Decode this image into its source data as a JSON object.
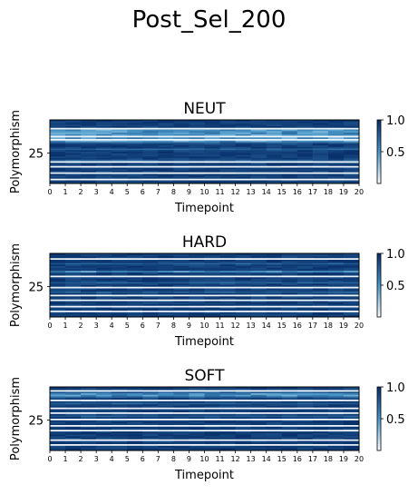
{
  "figure": {
    "title": "Post_Sel_200"
  },
  "colormap": {
    "low": "#f7fbff",
    "mid": "#4a98c9",
    "high": "#08306b"
  },
  "chart_data": [
    {
      "type": "heatmap",
      "title": "NEUT",
      "xlabel": "Timepoint",
      "ylabel": "Polymorphism",
      "x_ticks": [
        "0",
        "1",
        "2",
        "3",
        "4",
        "5",
        "6",
        "7",
        "8",
        "9",
        "10",
        "11",
        "12",
        "13",
        "14",
        "15",
        "16",
        "17",
        "18",
        "19",
        "20"
      ],
      "y_ticks": [
        "25"
      ],
      "n_rows": 40,
      "n_cols": 20,
      "colorbar": {
        "ticks": [
          "0.5",
          "1.0"
        ],
        "range": [
          0,
          1
        ]
      },
      "light_rows": [
        6,
        7,
        8,
        9,
        11,
        13
      ],
      "white_rows": [
        5,
        10,
        12,
        26,
        29,
        33,
        37
      ],
      "mid_rows": [
        14,
        18,
        25
      ]
    },
    {
      "type": "heatmap",
      "title": "HARD",
      "xlabel": "Timepoint",
      "ylabel": "Polymorphism",
      "x_ticks": [
        "0",
        "1",
        "2",
        "3",
        "4",
        "5",
        "6",
        "7",
        "8",
        "9",
        "10",
        "11",
        "12",
        "13",
        "14",
        "15",
        "16",
        "17",
        "18",
        "19",
        "20"
      ],
      "y_ticks": [
        "25"
      ],
      "n_rows": 40,
      "n_cols": 20,
      "colorbar": {
        "ticks": [
          "0.5",
          "1.0"
        ],
        "range": [
          0,
          1
        ]
      },
      "light_rows": [
        11
      ],
      "white_rows": [
        3,
        14,
        21,
        26,
        29,
        33,
        36
      ],
      "mid_rows": [
        6,
        18,
        24
      ]
    },
    {
      "type": "heatmap",
      "title": "SOFT",
      "xlabel": "Timepoint",
      "ylabel": "Polymorphism",
      "x_ticks": [
        "0",
        "1",
        "2",
        "3",
        "4",
        "5",
        "6",
        "7",
        "8",
        "9",
        "10",
        "11",
        "12",
        "13",
        "14",
        "15",
        "16",
        "17",
        "18",
        "19",
        "20"
      ],
      "y_ticks": [
        "25"
      ],
      "n_rows": 40,
      "n_cols": 20,
      "colorbar": {
        "ticks": [
          "0.5",
          "1.0"
        ],
        "range": [
          0,
          1
        ]
      },
      "light_rows": [
        4,
        5
      ],
      "white_rows": [
        2,
        8,
        13,
        16,
        20,
        24,
        27,
        33,
        36
      ],
      "mid_rows": [
        3,
        6,
        10,
        18
      ]
    }
  ]
}
